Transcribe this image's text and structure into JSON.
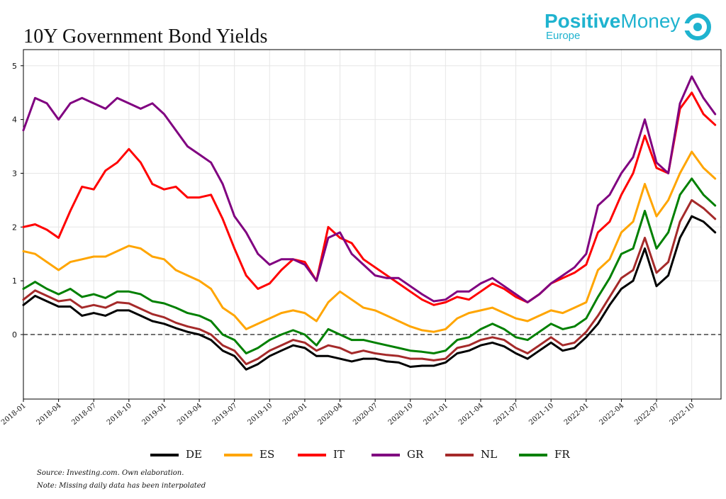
{
  "logo": {
    "name_bold": "Positive",
    "name_rest": "Money",
    "sub": "Europe",
    "color": "#1fb3cf"
  },
  "footer": {
    "source": "Source: Investing.com. Own elaboration.",
    "note": "Note: Missing daily data has been interpolated"
  },
  "chart_data": {
    "type": "line",
    "title": "10Y Government Bond Yields",
    "xlabel": "",
    "ylabel": "",
    "x_ticks": [
      "2018-01",
      "2018-04",
      "2018-07",
      "2018-10",
      "2019-01",
      "2019-04",
      "2019-07",
      "2019-10",
      "2020-01",
      "2020-04",
      "2020-07",
      "2020-10",
      "2021-01",
      "2021-04",
      "2021-07",
      "2021-10",
      "2022-01",
      "2022-04",
      "2022-07",
      "2022-10"
    ],
    "y_ticks": [
      0,
      1,
      2,
      3,
      4,
      5
    ],
    "ylim": [
      -1.2,
      5.3
    ],
    "grid": true,
    "zero_line": "dashed",
    "legend_position": "bottom",
    "x": [
      "2018-01",
      "2018-02",
      "2018-03",
      "2018-04",
      "2018-05",
      "2018-06",
      "2018-07",
      "2018-08",
      "2018-09",
      "2018-10",
      "2018-11",
      "2018-12",
      "2019-01",
      "2019-02",
      "2019-03",
      "2019-04",
      "2019-05",
      "2019-06",
      "2019-07",
      "2019-08",
      "2019-09",
      "2019-10",
      "2019-11",
      "2019-12",
      "2020-01",
      "2020-02",
      "2020-03",
      "2020-04",
      "2020-05",
      "2020-06",
      "2020-07",
      "2020-08",
      "2020-09",
      "2020-10",
      "2020-11",
      "2020-12",
      "2021-01",
      "2021-02",
      "2021-03",
      "2021-04",
      "2021-05",
      "2021-06",
      "2021-07",
      "2021-08",
      "2021-09",
      "2021-10",
      "2021-11",
      "2021-12",
      "2022-01",
      "2022-02",
      "2022-03",
      "2022-04",
      "2022-05",
      "2022-06",
      "2022-07",
      "2022-08",
      "2022-09",
      "2022-10",
      "2022-11",
      "2022-12"
    ],
    "series": [
      {
        "name": "DE",
        "color": "#000000",
        "values": [
          0.55,
          0.72,
          0.62,
          0.52,
          0.52,
          0.35,
          0.4,
          0.35,
          0.45,
          0.45,
          0.35,
          0.25,
          0.2,
          0.12,
          0.05,
          0.0,
          -0.1,
          -0.3,
          -0.4,
          -0.65,
          -0.55,
          -0.4,
          -0.3,
          -0.2,
          -0.25,
          -0.4,
          -0.4,
          -0.45,
          -0.5,
          -0.45,
          -0.45,
          -0.5,
          -0.52,
          -0.6,
          -0.58,
          -0.58,
          -0.52,
          -0.35,
          -0.3,
          -0.2,
          -0.15,
          -0.22,
          -0.35,
          -0.45,
          -0.3,
          -0.15,
          -0.3,
          -0.25,
          -0.05,
          0.2,
          0.55,
          0.85,
          1.0,
          1.6,
          0.9,
          1.1,
          1.8,
          2.2,
          2.1,
          1.9
        ]
      },
      {
        "name": "ES",
        "color": "#ffa500",
        "values": [
          1.55,
          1.5,
          1.35,
          1.2,
          1.35,
          1.4,
          1.45,
          1.45,
          1.55,
          1.65,
          1.6,
          1.45,
          1.4,
          1.2,
          1.1,
          1.0,
          0.85,
          0.5,
          0.35,
          0.1,
          0.2,
          0.3,
          0.4,
          0.45,
          0.4,
          0.25,
          0.6,
          0.8,
          0.65,
          0.5,
          0.45,
          0.35,
          0.25,
          0.15,
          0.08,
          0.05,
          0.1,
          0.3,
          0.4,
          0.45,
          0.5,
          0.4,
          0.3,
          0.25,
          0.35,
          0.45,
          0.4,
          0.5,
          0.6,
          1.2,
          1.4,
          1.9,
          2.1,
          2.8,
          2.2,
          2.5,
          3.0,
          3.4,
          3.1,
          2.9
        ]
      },
      {
        "name": "IT",
        "color": "#ff0000",
        "values": [
          2.0,
          2.05,
          1.95,
          1.8,
          2.3,
          2.75,
          2.7,
          3.05,
          3.2,
          3.45,
          3.2,
          2.8,
          2.7,
          2.75,
          2.55,
          2.55,
          2.6,
          2.15,
          1.6,
          1.1,
          0.85,
          0.95,
          1.2,
          1.4,
          1.35,
          1.0,
          2.0,
          1.8,
          1.7,
          1.4,
          1.25,
          1.1,
          0.95,
          0.8,
          0.65,
          0.55,
          0.6,
          0.7,
          0.65,
          0.8,
          0.95,
          0.85,
          0.7,
          0.6,
          0.75,
          0.95,
          1.05,
          1.15,
          1.3,
          1.9,
          2.1,
          2.6,
          3.0,
          3.7,
          3.1,
          3.0,
          4.2,
          4.5,
          4.1,
          3.9
        ]
      },
      {
        "name": "GR",
        "color": "#800080",
        "values": [
          3.8,
          4.4,
          4.3,
          4.0,
          4.3,
          4.4,
          4.3,
          4.2,
          4.4,
          4.3,
          4.2,
          4.3,
          4.1,
          3.8,
          3.5,
          3.35,
          3.2,
          2.8,
          2.2,
          1.9,
          1.5,
          1.3,
          1.4,
          1.4,
          1.3,
          1.0,
          1.8,
          1.9,
          1.5,
          1.3,
          1.1,
          1.05,
          1.05,
          0.9,
          0.75,
          0.62,
          0.65,
          0.8,
          0.8,
          0.95,
          1.05,
          0.9,
          0.75,
          0.6,
          0.75,
          0.95,
          1.1,
          1.25,
          1.5,
          2.4,
          2.6,
          3.0,
          3.3,
          4.0,
          3.2,
          3.0,
          4.3,
          4.8,
          4.4,
          4.1
        ]
      },
      {
        "name": "NL",
        "color": "#a52a2a",
        "values": [
          0.65,
          0.82,
          0.72,
          0.62,
          0.65,
          0.5,
          0.55,
          0.5,
          0.6,
          0.58,
          0.48,
          0.38,
          0.32,
          0.22,
          0.15,
          0.1,
          0.0,
          -0.2,
          -0.3,
          -0.55,
          -0.45,
          -0.3,
          -0.2,
          -0.1,
          -0.15,
          -0.3,
          -0.2,
          -0.25,
          -0.35,
          -0.3,
          -0.35,
          -0.38,
          -0.4,
          -0.45,
          -0.45,
          -0.48,
          -0.45,
          -0.25,
          -0.2,
          -0.1,
          -0.05,
          -0.1,
          -0.25,
          -0.35,
          -0.2,
          -0.05,
          -0.2,
          -0.15,
          0.05,
          0.35,
          0.7,
          1.05,
          1.2,
          1.8,
          1.15,
          1.35,
          2.1,
          2.5,
          2.35,
          2.15
        ]
      },
      {
        "name": "FR",
        "color": "#008000",
        "values": [
          0.85,
          0.98,
          0.85,
          0.75,
          0.85,
          0.7,
          0.75,
          0.68,
          0.8,
          0.8,
          0.75,
          0.62,
          0.58,
          0.5,
          0.4,
          0.35,
          0.25,
          0.0,
          -0.1,
          -0.35,
          -0.25,
          -0.1,
          0.0,
          0.08,
          0.0,
          -0.2,
          0.1,
          0.0,
          -0.1,
          -0.1,
          -0.15,
          -0.2,
          -0.25,
          -0.3,
          -0.32,
          -0.35,
          -0.3,
          -0.1,
          -0.05,
          0.1,
          0.2,
          0.1,
          -0.05,
          -0.1,
          0.05,
          0.2,
          0.1,
          0.15,
          0.3,
          0.7,
          1.05,
          1.5,
          1.6,
          2.3,
          1.6,
          1.9,
          2.6,
          2.9,
          2.6,
          2.4
        ]
      }
    ]
  }
}
